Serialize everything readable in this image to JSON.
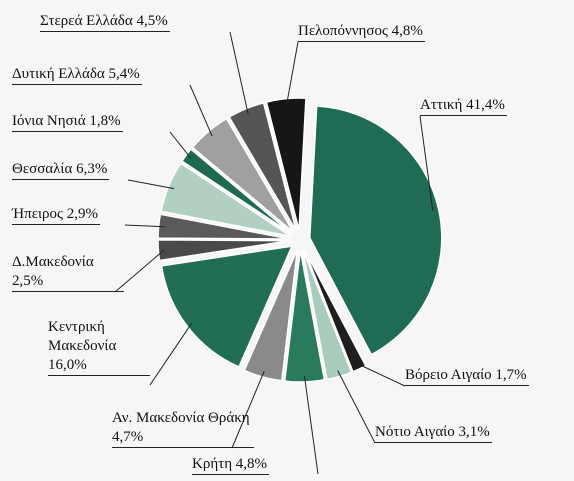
{
  "chart_data": {
    "type": "pie",
    "categories": [
      "Αττική",
      "Βόρειο Αιγαίο",
      "Νότιο Αιγαίο",
      "Κρήτη",
      "Αν. Μακεδονία Θράκη",
      "Κεντρική Μακεδονία",
      "Δ.Μακεδονία",
      "Ήπειρος",
      "Θεσσαλία",
      "Ιόνια Νησιά",
      "Δυτική Ελλάδα",
      "Στερεά Ελλάδα",
      "Πελοπόννησος"
    ],
    "values": [
      41.4,
      1.7,
      3.1,
      4.8,
      4.7,
      16.0,
      2.5,
      2.9,
      6.3,
      1.8,
      5.4,
      4.5,
      4.8
    ],
    "value_labels": [
      "41,4%",
      "1,7%",
      "3,1%",
      "4,8%",
      "4,7%",
      "16,0%",
      "2,5%",
      "2,9%",
      "6,3%",
      "1,8%",
      "5,4%",
      "4,5%",
      "4,8%"
    ],
    "colors": [
      "#1f6b53",
      "#1e1e1e",
      "#a9cbbb",
      "#2a7a5e",
      "#8a8a8a",
      "#226e55",
      "#4a4a4a",
      "#5a5a5a",
      "#b2d0c2",
      "#1d6a50",
      "#a0a0a0",
      "#555555",
      "#161616"
    ]
  }
}
